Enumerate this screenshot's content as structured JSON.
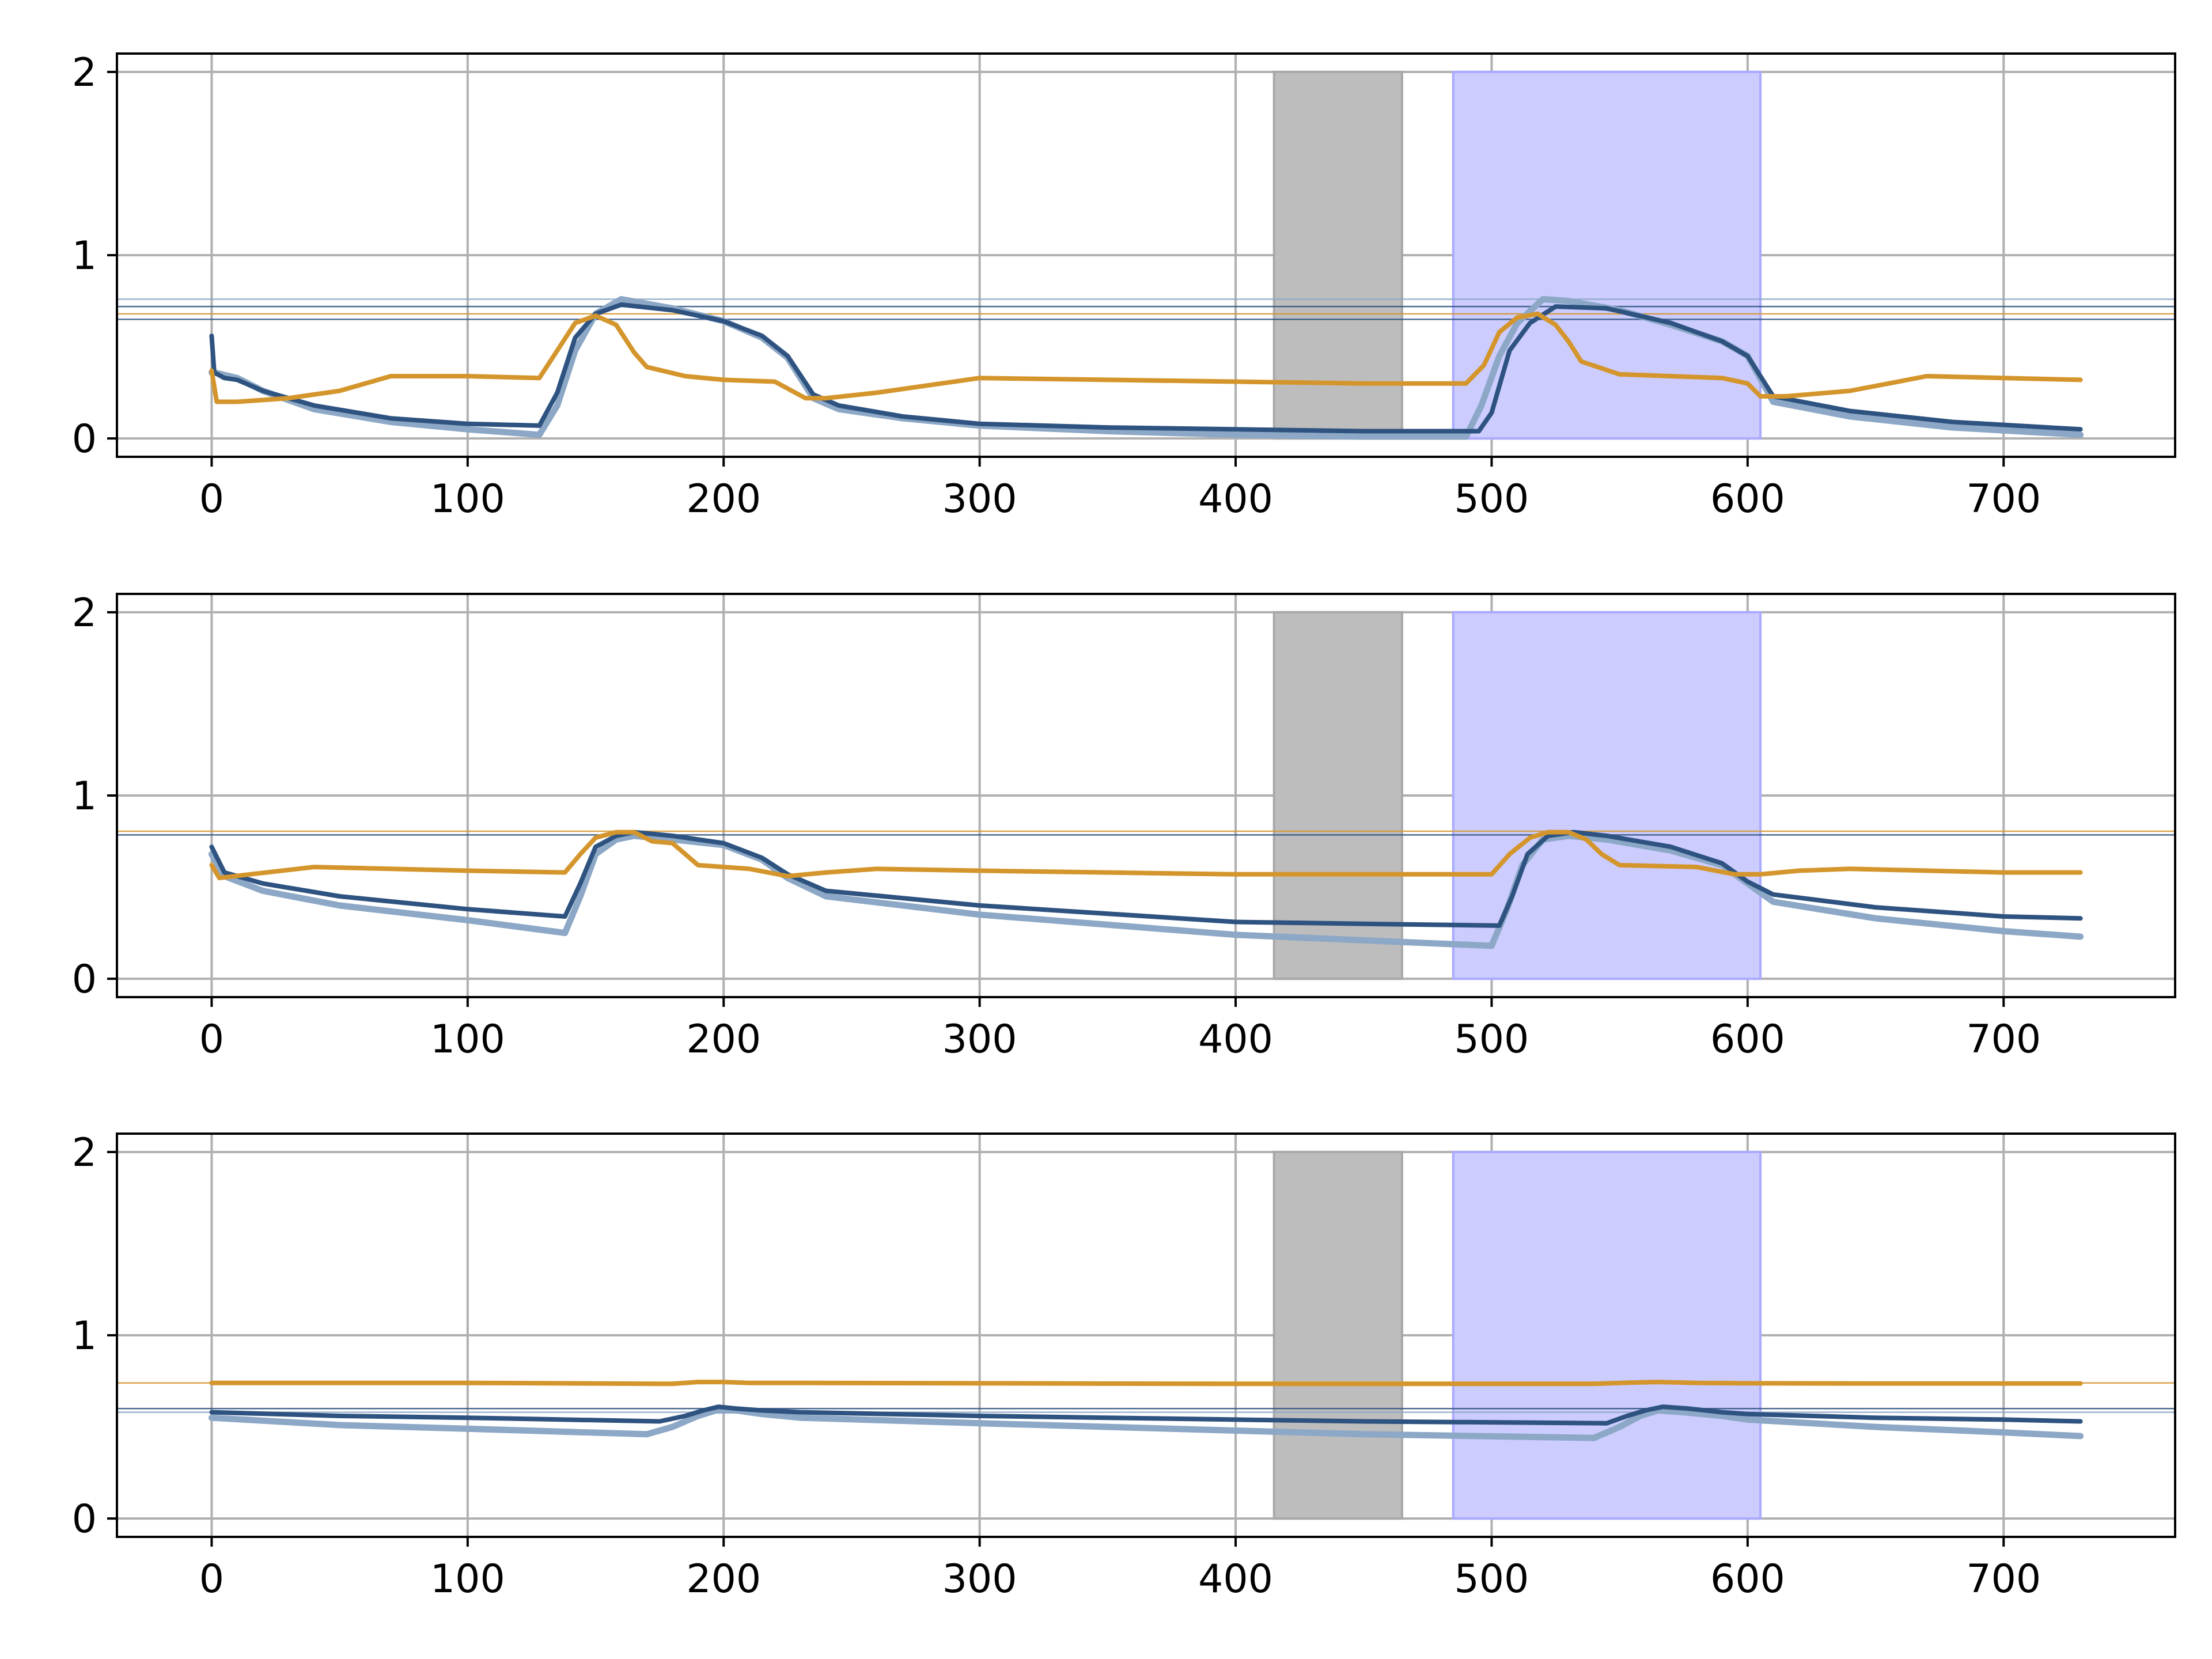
{
  "colors": {
    "dark_blue": "#2e5380",
    "light_blue": "#8ca8c6",
    "orange": "#d4962c",
    "gray_band": "#bdbdbd",
    "blue_band": "#ccccff",
    "grid": "#b0b0b0"
  },
  "chart_data": [
    {
      "type": "line",
      "name": "panel-1",
      "xlim": [
        -37,
        767
      ],
      "ylim": [
        -0.1,
        2.1
      ],
      "xticks": [
        "0",
        "100",
        "200",
        "300",
        "400",
        "500",
        "600",
        "700"
      ],
      "yticks": [
        "0",
        "1",
        "2"
      ],
      "grid": true,
      "shaded_regions": [
        {
          "name": "gray-region",
          "x0": 415,
          "x1": 465,
          "y_max": 2.0,
          "color": "gray_band"
        },
        {
          "name": "blue-region",
          "x0": 485,
          "x1": 605,
          "y_max": 2.0,
          "color": "blue_band"
        }
      ],
      "hlines": [
        {
          "y": 0.76,
          "color": "light_blue"
        },
        {
          "y": 0.72,
          "color": "dark_blue"
        },
        {
          "y": 0.68,
          "color": "orange"
        },
        {
          "y": 0.65,
          "color": "dark_blue"
        }
      ],
      "series": [
        {
          "name": "light-blue",
          "color": "light_blue",
          "x": [
            0,
            1,
            10,
            20,
            40,
            70,
            100,
            128,
            135,
            142,
            150,
            160,
            180,
            200,
            215,
            225,
            235,
            245,
            270,
            300,
            350,
            400,
            450,
            490,
            496,
            503,
            510,
            520,
            530,
            550,
            570,
            590,
            600,
            610,
            640,
            680,
            730
          ],
          "y": [
            0.36,
            0.36,
            0.33,
            0.26,
            0.16,
            0.09,
            0.05,
            0.02,
            0.18,
            0.48,
            0.68,
            0.76,
            0.71,
            0.64,
            0.55,
            0.44,
            0.22,
            0.16,
            0.11,
            0.07,
            0.04,
            0.02,
            0.01,
            0.01,
            0.18,
            0.45,
            0.63,
            0.76,
            0.75,
            0.7,
            0.62,
            0.53,
            0.45,
            0.2,
            0.12,
            0.06,
            0.02
          ]
        },
        {
          "name": "dark-blue",
          "color": "dark_blue",
          "x": [
            0,
            1,
            5,
            10,
            20,
            40,
            70,
            100,
            128,
            135,
            142,
            150,
            160,
            180,
            200,
            215,
            225,
            235,
            245,
            270,
            300,
            350,
            400,
            450,
            495,
            500,
            507,
            515,
            525,
            545,
            570,
            590,
            600,
            610,
            640,
            680,
            730
          ],
          "y": [
            0.56,
            0.36,
            0.33,
            0.32,
            0.26,
            0.18,
            0.11,
            0.08,
            0.07,
            0.25,
            0.55,
            0.68,
            0.73,
            0.7,
            0.64,
            0.56,
            0.45,
            0.24,
            0.18,
            0.12,
            0.08,
            0.06,
            0.05,
            0.04,
            0.04,
            0.14,
            0.48,
            0.63,
            0.72,
            0.71,
            0.63,
            0.53,
            0.45,
            0.23,
            0.15,
            0.09,
            0.05
          ]
        },
        {
          "name": "orange",
          "color": "orange",
          "x": [
            0,
            2,
            10,
            30,
            50,
            70,
            100,
            128,
            135,
            142,
            150,
            158,
            165,
            170,
            185,
            200,
            220,
            232,
            240,
            260,
            300,
            350,
            400,
            450,
            490,
            497,
            503,
            510,
            518,
            525,
            530,
            535,
            550,
            570,
            590,
            600,
            605,
            615,
            640,
            670,
            700,
            730
          ],
          "y": [
            0.37,
            0.2,
            0.2,
            0.22,
            0.26,
            0.34,
            0.34,
            0.33,
            0.48,
            0.63,
            0.67,
            0.62,
            0.47,
            0.39,
            0.34,
            0.32,
            0.31,
            0.22,
            0.22,
            0.25,
            0.33,
            0.32,
            0.31,
            0.3,
            0.3,
            0.4,
            0.58,
            0.66,
            0.68,
            0.62,
            0.53,
            0.42,
            0.35,
            0.34,
            0.33,
            0.3,
            0.23,
            0.23,
            0.26,
            0.34,
            0.33,
            0.32
          ]
        }
      ]
    },
    {
      "type": "line",
      "name": "panel-2",
      "xlim": [
        -37,
        767
      ],
      "ylim": [
        -0.1,
        2.1
      ],
      "xticks": [
        "0",
        "100",
        "200",
        "300",
        "400",
        "500",
        "600",
        "700"
      ],
      "yticks": [
        "0",
        "1",
        "2"
      ],
      "grid": true,
      "shaded_regions": [
        {
          "name": "gray-region",
          "x0": 415,
          "x1": 465,
          "y_max": 2.0,
          "color": "gray_band"
        },
        {
          "name": "blue-region",
          "x0": 485,
          "x1": 605,
          "y_max": 2.0,
          "color": "blue_band"
        }
      ],
      "hlines": [
        {
          "y": 0.805,
          "color": "orange"
        },
        {
          "y": 0.785,
          "color": "dark_blue"
        }
      ],
      "series": [
        {
          "name": "light-blue",
          "color": "light_blue",
          "x": [
            0,
            5,
            20,
            50,
            100,
            138,
            144,
            150,
            158,
            165,
            180,
            200,
            215,
            225,
            240,
            300,
            400,
            450,
            500,
            506,
            512,
            520,
            530,
            545,
            570,
            590,
            600,
            610,
            650,
            700,
            730
          ],
          "y": [
            0.68,
            0.56,
            0.48,
            0.4,
            0.32,
            0.25,
            0.45,
            0.68,
            0.76,
            0.78,
            0.76,
            0.73,
            0.65,
            0.55,
            0.45,
            0.35,
            0.24,
            0.21,
            0.18,
            0.38,
            0.62,
            0.76,
            0.78,
            0.76,
            0.7,
            0.62,
            0.52,
            0.42,
            0.33,
            0.26,
            0.23
          ]
        },
        {
          "name": "dark-blue",
          "color": "dark_blue",
          "x": [
            0,
            5,
            20,
            50,
            100,
            138,
            144,
            150,
            158,
            165,
            180,
            200,
            215,
            225,
            240,
            300,
            400,
            450,
            503,
            508,
            514,
            522,
            532,
            545,
            570,
            590,
            600,
            610,
            650,
            700,
            730
          ],
          "y": [
            0.72,
            0.58,
            0.52,
            0.45,
            0.38,
            0.34,
            0.52,
            0.72,
            0.78,
            0.8,
            0.78,
            0.74,
            0.66,
            0.57,
            0.48,
            0.4,
            0.31,
            0.3,
            0.29,
            0.45,
            0.68,
            0.78,
            0.8,
            0.78,
            0.72,
            0.63,
            0.53,
            0.46,
            0.39,
            0.34,
            0.33
          ]
        },
        {
          "name": "orange",
          "color": "orange",
          "x": [
            0,
            3,
            15,
            40,
            70,
            100,
            138,
            144,
            150,
            158,
            165,
            172,
            180,
            190,
            210,
            225,
            240,
            260,
            300,
            400,
            450,
            500,
            507,
            515,
            522,
            530,
            537,
            543,
            550,
            580,
            595,
            605,
            620,
            640,
            700,
            730
          ],
          "y": [
            0.62,
            0.55,
            0.57,
            0.61,
            0.6,
            0.59,
            0.58,
            0.68,
            0.77,
            0.8,
            0.8,
            0.75,
            0.74,
            0.62,
            0.6,
            0.56,
            0.58,
            0.6,
            0.59,
            0.57,
            0.57,
            0.57,
            0.68,
            0.77,
            0.8,
            0.8,
            0.76,
            0.68,
            0.62,
            0.61,
            0.57,
            0.57,
            0.59,
            0.6,
            0.58,
            0.58
          ]
        }
      ]
    },
    {
      "type": "line",
      "name": "panel-3",
      "xlim": [
        -37,
        767
      ],
      "ylim": [
        -0.1,
        2.1
      ],
      "xticks": [
        "0",
        "100",
        "200",
        "300",
        "400",
        "500",
        "600",
        "700"
      ],
      "yticks": [
        "0",
        "1",
        "2"
      ],
      "grid": true,
      "shaded_regions": [
        {
          "name": "gray-region",
          "x0": 415,
          "x1": 465,
          "y_max": 2.0,
          "color": "gray_band"
        },
        {
          "name": "blue-region",
          "x0": 485,
          "x1": 605,
          "y_max": 2.0,
          "color": "blue_band"
        }
      ],
      "hlines": [
        {
          "y": 0.74,
          "color": "orange"
        },
        {
          "y": 0.6,
          "color": "dark_blue"
        },
        {
          "y": 0.58,
          "color": "light_blue"
        }
      ],
      "series": [
        {
          "name": "light-blue",
          "color": "light_blue",
          "x": [
            0,
            50,
            100,
            170,
            180,
            190,
            197,
            205,
            215,
            230,
            300,
            400,
            450,
            540,
            550,
            558,
            565,
            575,
            590,
            600,
            650,
            700,
            730
          ],
          "y": [
            0.55,
            0.51,
            0.49,
            0.46,
            0.5,
            0.56,
            0.59,
            0.59,
            0.57,
            0.55,
            0.52,
            0.48,
            0.46,
            0.44,
            0.5,
            0.56,
            0.59,
            0.58,
            0.56,
            0.54,
            0.5,
            0.47,
            0.45
          ]
        },
        {
          "name": "dark-blue",
          "color": "dark_blue",
          "x": [
            0,
            50,
            100,
            175,
            185,
            192,
            198,
            205,
            215,
            230,
            300,
            400,
            450,
            545,
            553,
            560,
            567,
            577,
            590,
            600,
            650,
            700,
            730
          ],
          "y": [
            0.58,
            0.56,
            0.55,
            0.53,
            0.56,
            0.59,
            0.61,
            0.6,
            0.59,
            0.58,
            0.56,
            0.54,
            0.53,
            0.52,
            0.56,
            0.59,
            0.61,
            0.6,
            0.58,
            0.57,
            0.55,
            0.54,
            0.53
          ]
        },
        {
          "name": "orange",
          "color": "orange",
          "x": [
            0,
            100,
            180,
            190,
            200,
            210,
            230,
            300,
            400,
            450,
            540,
            555,
            565,
            580,
            600,
            650,
            700,
            730
          ],
          "y": [
            0.74,
            0.74,
            0.735,
            0.745,
            0.745,
            0.74,
            0.74,
            0.738,
            0.735,
            0.735,
            0.735,
            0.742,
            0.745,
            0.74,
            0.738,
            0.737,
            0.737,
            0.737
          ]
        }
      ]
    }
  ]
}
